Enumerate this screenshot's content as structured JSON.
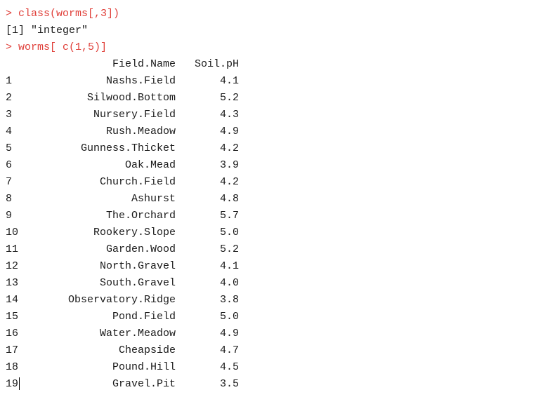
{
  "console": {
    "prompt": ">",
    "commands": [
      "class(worms[,3])",
      "worms[ c(1,5)]"
    ],
    "outputs": [
      "[1] \"integer\""
    ],
    "table": {
      "headers": [
        "Field.Name",
        "Soil.pH"
      ],
      "rows": [
        {
          "idx": "1",
          "name": "Nashs.Field",
          "ph": "4.1"
        },
        {
          "idx": "2",
          "name": "Silwood.Bottom",
          "ph": "5.2"
        },
        {
          "idx": "3",
          "name": "Nursery.Field",
          "ph": "4.3"
        },
        {
          "idx": "4",
          "name": "Rush.Meadow",
          "ph": "4.9"
        },
        {
          "idx": "5",
          "name": "Gunness.Thicket",
          "ph": "4.2"
        },
        {
          "idx": "6",
          "name": "Oak.Mead",
          "ph": "3.9"
        },
        {
          "idx": "7",
          "name": "Church.Field",
          "ph": "4.2"
        },
        {
          "idx": "8",
          "name": "Ashurst",
          "ph": "4.8"
        },
        {
          "idx": "9",
          "name": "The.Orchard",
          "ph": "5.7"
        },
        {
          "idx": "10",
          "name": "Rookery.Slope",
          "ph": "5.0"
        },
        {
          "idx": "11",
          "name": "Garden.Wood",
          "ph": "5.2"
        },
        {
          "idx": "12",
          "name": "North.Gravel",
          "ph": "4.1"
        },
        {
          "idx": "13",
          "name": "South.Gravel",
          "ph": "4.0"
        },
        {
          "idx": "14",
          "name": "Observatory.Ridge",
          "ph": "3.8"
        },
        {
          "idx": "15",
          "name": "Pond.Field",
          "ph": "5.0"
        },
        {
          "idx": "16",
          "name": "Water.Meadow",
          "ph": "4.9"
        },
        {
          "idx": "17",
          "name": "Cheapside",
          "ph": "4.7"
        },
        {
          "idx": "18",
          "name": "Pound.Hill",
          "ph": "4.5"
        },
        {
          "idx": "19",
          "name": "Gravel.Pit",
          "ph": "3.5"
        }
      ]
    }
  },
  "colors": {
    "command": "#e0403a",
    "output": "#1a1a1a",
    "background": "#ffffff"
  }
}
